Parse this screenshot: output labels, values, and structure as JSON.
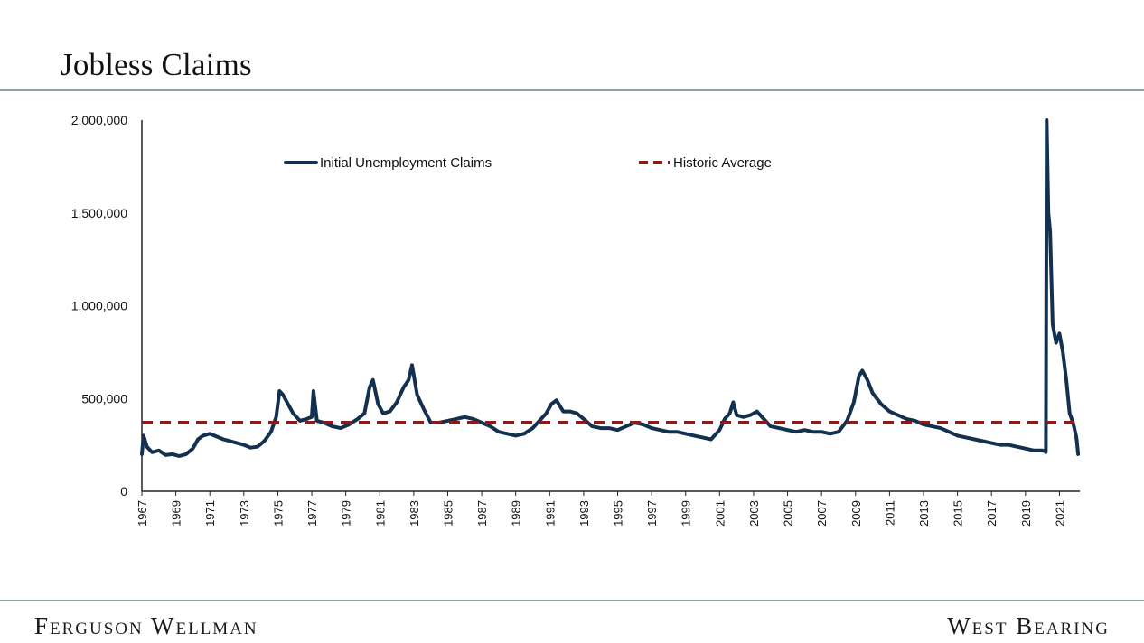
{
  "header": {
    "title": "Jobless Claims"
  },
  "footer": {
    "left_brand": "Ferguson Wellman",
    "right_brand": "West Bearing"
  },
  "colors": {
    "series": "#13304f",
    "average": "#8b1a1a",
    "rule": "#8fa3a6"
  },
  "chart_data": {
    "type": "line",
    "title": "",
    "xlabel": "",
    "ylabel": "",
    "ylim": [
      0,
      2000000
    ],
    "yticks": [
      "0",
      "500,000",
      "1,000,000",
      "1,500,000",
      "2,000,000"
    ],
    "xlim": [
      1967,
      2022.2
    ],
    "xticks": [
      "1967",
      "1969",
      "1971",
      "1973",
      "1975",
      "1977",
      "1979",
      "1981",
      "1983",
      "1985",
      "1987",
      "1989",
      "1991",
      "1993",
      "1995",
      "1997",
      "1999",
      "2001",
      "2003",
      "2005",
      "2007",
      "2009",
      "2011",
      "2013",
      "2015",
      "2017",
      "2019",
      "2021"
    ],
    "legend_position": "top",
    "series": [
      {
        "name": "Initial Unemployment Claims",
        "style": "solid",
        "x": [
          1967.0,
          1967.1,
          1967.3,
          1967.6,
          1968.0,
          1968.4,
          1968.8,
          1969.2,
          1969.6,
          1970.0,
          1970.3,
          1970.6,
          1971.0,
          1971.4,
          1971.8,
          1972.2,
          1972.6,
          1973.0,
          1973.4,
          1973.8,
          1974.2,
          1974.6,
          1974.9,
          1975.1,
          1975.3,
          1975.6,
          1975.9,
          1976.3,
          1976.7,
          1977.0,
          1977.1,
          1977.3,
          1977.7,
          1978.2,
          1978.7,
          1979.2,
          1979.7,
          1980.1,
          1980.4,
          1980.6,
          1980.9,
          1981.2,
          1981.6,
          1982.0,
          1982.4,
          1982.7,
          1982.9,
          1983.2,
          1983.6,
          1984.0,
          1984.5,
          1985.0,
          1985.5,
          1986.0,
          1986.5,
          1987.0,
          1987.5,
          1988.0,
          1988.5,
          1989.0,
          1989.5,
          1990.0,
          1990.4,
          1990.8,
          1991.1,
          1991.4,
          1991.8,
          1992.2,
          1992.6,
          1993.0,
          1993.5,
          1994.0,
          1994.5,
          1995.0,
          1995.5,
          1996.0,
          1996.5,
          1997.0,
          1997.5,
          1998.0,
          1998.5,
          1999.0,
          1999.5,
          2000.0,
          2000.5,
          2001.0,
          2001.3,
          2001.6,
          2001.8,
          2002.0,
          2002.4,
          2002.8,
          2003.2,
          2003.6,
          2004.0,
          2004.5,
          2005.0,
          2005.5,
          2006.0,
          2006.5,
          2007.0,
          2007.5,
          2008.0,
          2008.5,
          2008.9,
          2009.2,
          2009.4,
          2009.7,
          2010.0,
          2010.5,
          2011.0,
          2011.5,
          2012.0,
          2012.5,
          2013.0,
          2013.5,
          2014.0,
          2014.5,
          2015.0,
          2015.5,
          2016.0,
          2016.5,
          2017.0,
          2017.5,
          2018.0,
          2018.5,
          2019.0,
          2019.5,
          2020.0,
          2020.15,
          2020.2,
          2020.25,
          2020.35,
          2020.45,
          2020.6,
          2020.8,
          2021.0,
          2021.2,
          2021.4,
          2021.6,
          2021.8,
          2022.0,
          2022.1
        ],
        "y": [
          200000,
          300000,
          240000,
          210000,
          220000,
          195000,
          200000,
          190000,
          200000,
          230000,
          280000,
          300000,
          310000,
          295000,
          280000,
          270000,
          260000,
          250000,
          235000,
          240000,
          270000,
          320000,
          400000,
          540000,
          520000,
          470000,
          420000,
          380000,
          390000,
          400000,
          540000,
          380000,
          370000,
          350000,
          340000,
          360000,
          390000,
          420000,
          560000,
          600000,
          470000,
          420000,
          430000,
          480000,
          560000,
          600000,
          680000,
          520000,
          440000,
          370000,
          370000,
          380000,
          390000,
          400000,
          390000,
          370000,
          350000,
          320000,
          310000,
          300000,
          310000,
          340000,
          380000,
          420000,
          470000,
          490000,
          430000,
          430000,
          420000,
          390000,
          350000,
          340000,
          340000,
          330000,
          350000,
          370000,
          360000,
          340000,
          330000,
          320000,
          320000,
          310000,
          300000,
          290000,
          280000,
          330000,
          390000,
          420000,
          480000,
          410000,
          400000,
          410000,
          430000,
          390000,
          350000,
          340000,
          330000,
          320000,
          330000,
          320000,
          320000,
          310000,
          320000,
          380000,
          480000,
          620000,
          650000,
          600000,
          530000,
          470000,
          430000,
          410000,
          390000,
          380000,
          360000,
          350000,
          340000,
          320000,
          300000,
          290000,
          280000,
          270000,
          260000,
          250000,
          250000,
          240000,
          230000,
          220000,
          220000,
          215000,
          210000,
          2000000,
          1500000,
          1400000,
          900000,
          800000,
          850000,
          750000,
          600000,
          420000,
          370000,
          290000,
          200000
        ]
      },
      {
        "name": "Historic Average",
        "style": "dashed",
        "x": [
          1967,
          2022.1
        ],
        "y": [
          370000,
          370000
        ]
      }
    ]
  }
}
